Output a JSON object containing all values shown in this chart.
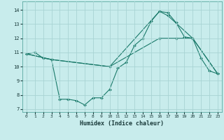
{
  "xlabel": "Humidex (Indice chaleur)",
  "background_color": "#c8ecec",
  "grid_color": "#a8d4d4",
  "line_color": "#1a7a6a",
  "xlim": [
    -0.5,
    23.5
  ],
  "ylim": [
    6.8,
    14.6
  ],
  "yticks": [
    7,
    8,
    9,
    10,
    11,
    12,
    13,
    14
  ],
  "xticks": [
    0,
    1,
    2,
    3,
    4,
    5,
    6,
    7,
    8,
    9,
    10,
    11,
    12,
    13,
    14,
    15,
    16,
    17,
    18,
    19,
    20,
    21,
    22,
    23
  ],
  "series": [
    {
      "x": [
        0,
        1,
        2,
        3,
        4,
        5,
        6,
        7,
        8,
        9,
        10,
        11,
        12,
        13,
        14,
        15,
        16,
        17,
        18,
        19,
        20,
        21,
        22,
        23
      ],
      "y": [
        10.9,
        11.0,
        10.6,
        10.5,
        7.7,
        7.7,
        7.6,
        7.3,
        7.8,
        7.8,
        8.4,
        9.9,
        10.3,
        11.5,
        12.0,
        13.2,
        13.9,
        13.8,
        13.1,
        12.1,
        12.0,
        10.6,
        9.7,
        9.5
      ],
      "marker": true
    },
    {
      "x": [
        0,
        3,
        10,
        16,
        17,
        20,
        23
      ],
      "y": [
        10.9,
        10.5,
        10.0,
        13.9,
        13.6,
        12.0,
        9.5
      ],
      "marker": true
    },
    {
      "x": [
        0,
        3,
        10,
        16,
        18,
        20,
        23
      ],
      "y": [
        10.9,
        10.5,
        10.0,
        12.0,
        12.0,
        12.0,
        9.5
      ],
      "marker": true
    }
  ]
}
